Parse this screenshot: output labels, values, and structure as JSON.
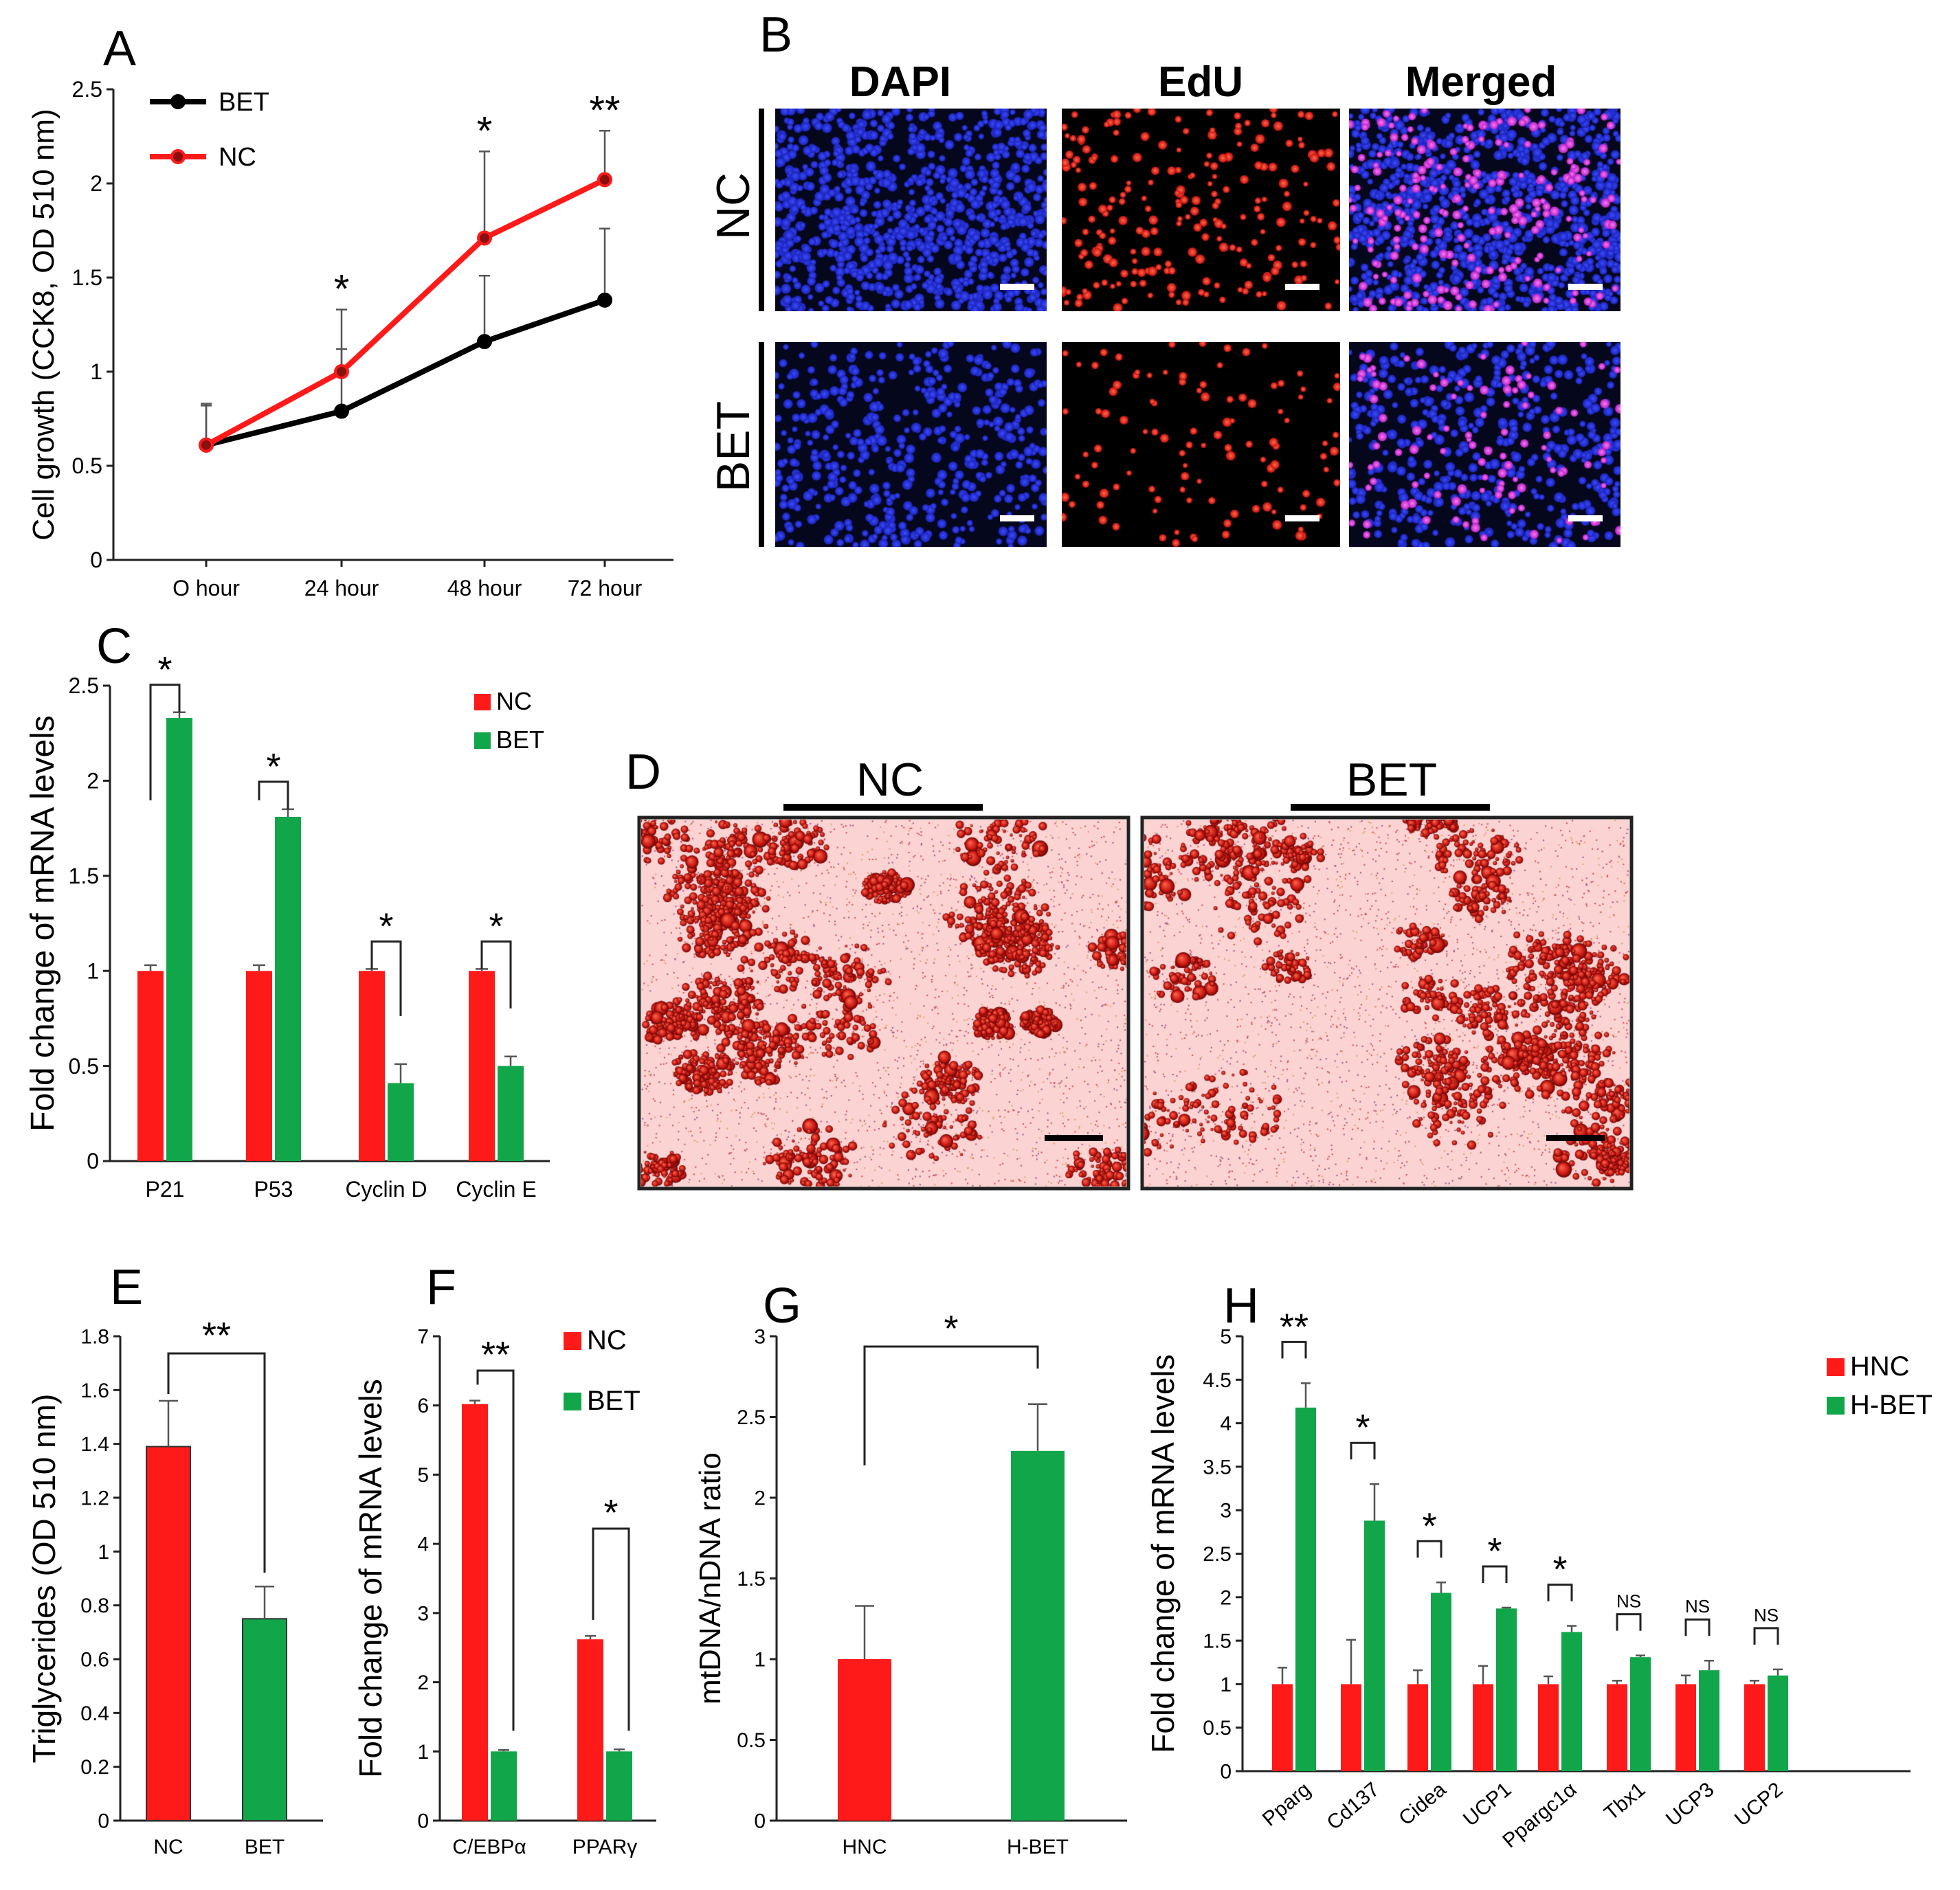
{
  "colors": {
    "red": "#ff1a1a",
    "green": "#11a64a",
    "black": "#000000",
    "dapi_bg": "#05071c",
    "stain_bg": "#fbd3d3"
  },
  "chart_data": [
    {
      "panel": "A",
      "type": "line",
      "ylabel": "Cell growth (CCK8, OD 510 nm)",
      "xlabel": "",
      "categories": [
        "O hour",
        "24 hour",
        "48 hour",
        "72 hour"
      ],
      "ylim": [
        0,
        2.5
      ],
      "yticks": [
        "0",
        "0.5",
        "1",
        "1.5",
        "2",
        "2.5"
      ],
      "series": [
        {
          "name": "BET",
          "color": "#000000",
          "values": [
            0.61,
            0.79,
            1.16,
            1.38
          ],
          "errors": [
            0.22,
            0.33,
            0.35,
            0.38
          ]
        },
        {
          "name": "NC",
          "color": "#ff1a1a",
          "values": [
            0.61,
            1.0,
            1.71,
            2.02
          ],
          "errors": [
            0.21,
            0.33,
            0.46,
            0.26
          ]
        }
      ],
      "significance": [
        "",
        "*",
        "*",
        "**"
      ],
      "legend": "top-left"
    },
    {
      "panel": "C",
      "type": "bar",
      "ylabel": "Fold change of mRNA levels",
      "categories": [
        "P21",
        "P53",
        "Cyclin D",
        "Cyclin E"
      ],
      "ylim": [
        0,
        2.5
      ],
      "yticks": [
        "0",
        "0.5",
        "1",
        "1.5",
        "2",
        "2.5"
      ],
      "series": [
        {
          "name": "NC",
          "color": "#ff1a1a",
          "values": [
            1.0,
            1.0,
            1.0,
            1.0
          ],
          "errors": [
            0.03,
            0.03,
            0.01,
            0.01
          ]
        },
        {
          "name": "BET",
          "color": "#11a64a",
          "values": [
            2.33,
            1.81,
            0.41,
            0.5
          ],
          "errors": [
            0.03,
            0.04,
            0.1,
            0.05
          ]
        }
      ],
      "significance": [
        "*",
        "*",
        "*",
        "*"
      ],
      "legend": "top-right"
    },
    {
      "panel": "E",
      "type": "bar",
      "ylabel": "Triglycerides (OD 510 nm)",
      "categories": [
        "NC",
        "BET"
      ],
      "ylim": [
        0,
        1.8
      ],
      "yticks": [
        "0",
        "0.2",
        "0.4",
        "0.6",
        "0.8",
        "1",
        "1.2",
        "1.4",
        "1.6",
        "1.8"
      ],
      "values": [
        1.39,
        0.75
      ],
      "errors": [
        0.17,
        0.12
      ],
      "colors": [
        "#ff1a1a",
        "#11a64a"
      ],
      "significance": [
        "**"
      ]
    },
    {
      "panel": "F",
      "type": "bar",
      "ylabel": "Fold change of mRNA levels",
      "categories": [
        "C/EBPα",
        "PPARγ"
      ],
      "ylim": [
        0,
        7
      ],
      "yticks": [
        "0",
        "1",
        "2",
        "3",
        "4",
        "5",
        "6",
        "7"
      ],
      "series": [
        {
          "name": "NC",
          "color": "#ff1a1a",
          "values": [
            6.02,
            2.62
          ],
          "errors": [
            0.05,
            0.05
          ]
        },
        {
          "name": "BET",
          "color": "#11a64a",
          "values": [
            1.0,
            1.0
          ],
          "errors": [
            0.02,
            0.03
          ]
        }
      ],
      "significance": [
        "**",
        "*"
      ],
      "legend": "top-right"
    },
    {
      "panel": "G",
      "type": "bar",
      "ylabel": "mtDNA/nDNA ratio",
      "categories": [
        "HNC",
        "H-BET"
      ],
      "ylim": [
        0,
        3
      ],
      "yticks": [
        "0",
        "0.5",
        "1",
        "1.5",
        "2",
        "2.5",
        "3"
      ],
      "values": [
        1.0,
        2.29
      ],
      "errors": [
        0.33,
        0.29
      ],
      "colors": [
        "#ff1a1a",
        "#11a64a"
      ],
      "significance": [
        "*"
      ]
    },
    {
      "panel": "H",
      "type": "bar",
      "ylabel": "Fold change of mRNA levels",
      "categories": [
        "Pparg",
        "Cd137",
        "Cidea",
        "UCP1",
        "Ppargc1α",
        "Tbx1",
        "UCP3",
        "UCP2"
      ],
      "ylim": [
        0,
        5
      ],
      "yticks": [
        "0",
        "0.5",
        "1",
        "1.5",
        "2",
        "2.5",
        "3",
        "3.5",
        "4",
        "4.5",
        "5"
      ],
      "series": [
        {
          "name": "HNC",
          "color": "#ff1a1a",
          "values": [
            1,
            1,
            1,
            1,
            1,
            1,
            1,
            1
          ],
          "errors": [
            0.19,
            0.51,
            0.16,
            0.21,
            0.09,
            0.04,
            0.1,
            0.04
          ]
        },
        {
          "name": "H-BET",
          "color": "#11a64a",
          "values": [
            4.18,
            2.88,
            2.05,
            1.87,
            1.6,
            1.31,
            1.16,
            1.1
          ],
          "errors": [
            0.28,
            0.42,
            0.12,
            0.01,
            0.07,
            0.02,
            0.11,
            0.07
          ]
        }
      ],
      "significance": [
        "**",
        "*",
        "*",
        "*",
        "*",
        "NS",
        "NS",
        "NS"
      ],
      "legend": "top-right"
    }
  ],
  "panel_letters": {
    "a": "A",
    "b": "B",
    "c": "C",
    "d": "D",
    "e": "E",
    "f": "F",
    "g": "G",
    "h": "H"
  },
  "panel_b": {
    "columns": [
      "DAPI",
      "EdU",
      "Merged"
    ],
    "rows": [
      "NC",
      "BET"
    ]
  },
  "panel_d": {
    "labels": [
      "NC",
      "BET"
    ]
  }
}
